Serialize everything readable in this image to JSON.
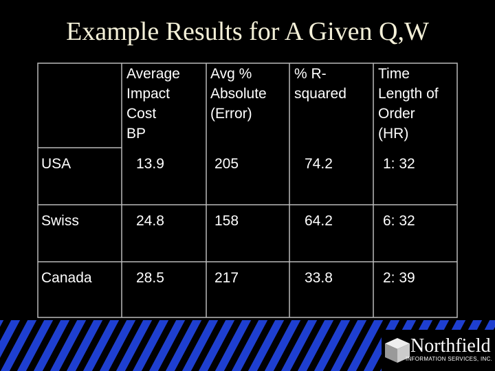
{
  "title": "Example Results for A Given Q,W",
  "table": {
    "header": [
      [],
      [
        "Average",
        "Impact",
        "Cost",
        "BP"
      ],
      [
        "Avg %",
        "Absolute",
        "(Error)"
      ],
      [
        "%  R-",
        "squared"
      ],
      [
        "Time",
        "Length of",
        "Order",
        "(HR)"
      ]
    ],
    "rows": [
      [
        "USA",
        "13.9",
        "205",
        "74.2",
        "1: 32"
      ],
      [
        "Swiss",
        "24.8",
        "158",
        "64.2",
        "6: 32"
      ],
      [
        "Canada",
        "28.5",
        "217",
        "33.8",
        "2: 39"
      ]
    ]
  },
  "logo": {
    "name": "Northfield",
    "subtitle": "INFORMATION SERVICES, INC."
  }
}
